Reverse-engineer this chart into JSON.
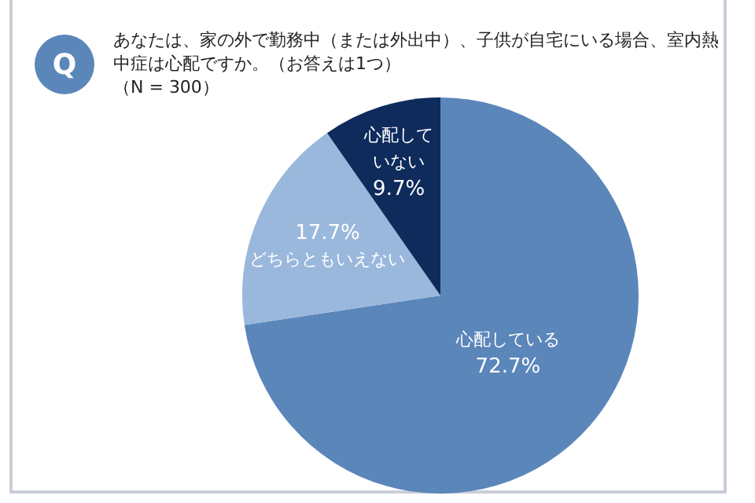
{
  "chart_data": {
    "type": "pie",
    "title": "あなたは、家の外で勤務中（または外出中）、子供が自宅にいる場合、室内熱中症は心配ですか。（お答えは1つ）",
    "subtitle": "（N = 300）",
    "annotations": [
      "Q"
    ],
    "categories": [
      "心配している",
      "どちらともいえない",
      "心配していない"
    ],
    "values": [
      72.7,
      17.7,
      9.7
    ],
    "value_labels": [
      "72.7%",
      "17.7%",
      "9.7%"
    ],
    "colors": [
      "#5b86ba",
      "#9ab8dc",
      "#0e2b5c"
    ],
    "legend": false
  }
}
